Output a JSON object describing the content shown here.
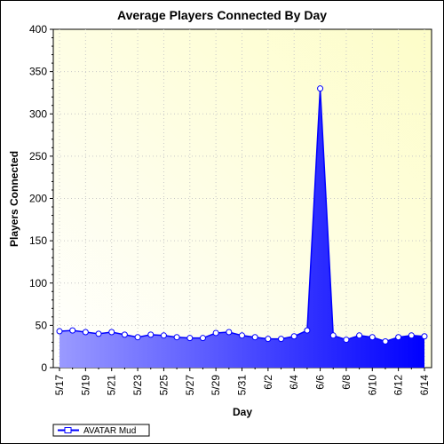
{
  "chart_data": {
    "type": "area",
    "title": "Average Players Connected By Day",
    "xlabel": "Day",
    "ylabel": "Players Connected",
    "ylim": [
      0,
      400
    ],
    "yticks": [
      0,
      50,
      100,
      150,
      200,
      250,
      300,
      350,
      400
    ],
    "x_tick_labels": [
      "5/17",
      "5/19",
      "5/21",
      "5/23",
      "5/25",
      "5/27",
      "5/29",
      "5/31",
      "6/2",
      "6/4",
      "6/6",
      "6/8",
      "6/10",
      "6/12",
      "6/14"
    ],
    "grid": true,
    "legend_position": "bottom-left",
    "series": [
      {
        "name": "AVATAR Mud",
        "color": "#0000ff",
        "x": [
          "5/17",
          "5/18",
          "5/19",
          "5/20",
          "5/21",
          "5/22",
          "5/23",
          "5/24",
          "5/25",
          "5/26",
          "5/27",
          "5/28",
          "5/29",
          "5/30",
          "5/31",
          "6/1",
          "6/2",
          "6/3",
          "6/4",
          "6/5",
          "6/6",
          "6/7",
          "6/8",
          "6/9",
          "6/10",
          "6/11",
          "6/12",
          "6/13",
          "6/14"
        ],
        "values": [
          43,
          44,
          42,
          40,
          42,
          39,
          36,
          39,
          38,
          36,
          35,
          35,
          41,
          42,
          38,
          36,
          34,
          34,
          37,
          44,
          330,
          38,
          33,
          38,
          36,
          31,
          36,
          38,
          37
        ]
      }
    ]
  }
}
